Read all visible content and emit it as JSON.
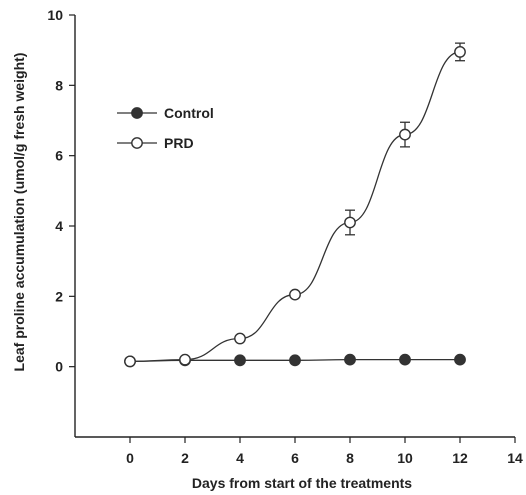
{
  "chart_data": {
    "type": "line",
    "title": "",
    "xlabel": "Days from  start of the treatments",
    "ylabel": "Leaf proline accumulation (umol/g fresh weight)",
    "xlim": [
      -2,
      14
    ],
    "ylim": [
      -2,
      10
    ],
    "xticks": [
      0,
      2,
      4,
      6,
      8,
      10,
      12,
      14
    ],
    "yticks": [
      0,
      2,
      4,
      6,
      8,
      10
    ],
    "legend_position": "upper-left",
    "grid": false,
    "series": [
      {
        "name": "Control",
        "marker": "filled-circle",
        "color": "#333333",
        "x": [
          0,
          2,
          4,
          6,
          8,
          10,
          12
        ],
        "y": [
          0.15,
          0.18,
          0.18,
          0.18,
          0.2,
          0.2,
          0.2
        ],
        "error": [
          0,
          0,
          0,
          0,
          0,
          0,
          0
        ]
      },
      {
        "name": "PRD",
        "marker": "open-circle",
        "color": "#333333",
        "x": [
          0,
          2,
          4,
          6,
          8,
          10,
          12
        ],
        "y": [
          0.15,
          0.2,
          0.8,
          2.05,
          4.1,
          6.6,
          8.95
        ],
        "error": [
          0,
          0,
          0.05,
          0.05,
          0.35,
          0.35,
          0.25
        ]
      }
    ]
  }
}
